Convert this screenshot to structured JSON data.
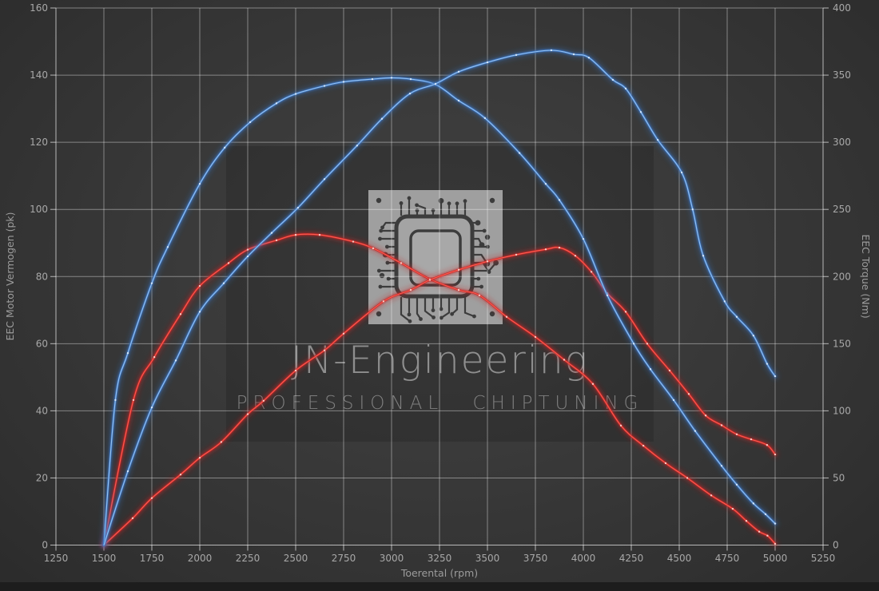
{
  "watermark": {
    "brand": "JN-Engineering",
    "tagline": "PROFESSIONAL CHIPTUNING",
    "logo": "chip-circuit-logo"
  },
  "colors": {
    "blue_series": "#3c78c8",
    "blue_core": "#9cc6f0",
    "blue_marker": "#dcebfb",
    "red_series": "#c62828",
    "red_core": "#ff5f52",
    "red_marker": "#ffd7cf",
    "grid": "rgba(255,255,255,0.40)",
    "axis": "rgba(255,255,255,0.65)",
    "background_center": "#424242",
    "background_edge": "#2b2b2b"
  },
  "chart_data": {
    "type": "line",
    "title": "",
    "xlabel": "Toerental (rpm)",
    "ylabel_left": "EEC Motor Vermogen (pk)",
    "ylabel_right": "EEC Torque (Nm)",
    "grid": true,
    "legend": "none",
    "x_range": [
      1250,
      5250
    ],
    "x_tick_step": 250,
    "y_left_range": [
      0,
      160
    ],
    "y_left_tick_step": 20,
    "y_right_range": [
      0,
      400
    ],
    "y_right_tick_step": 50,
    "x_tick_labels": [
      "1250",
      "1500",
      "1750",
      "2000",
      "2250",
      "2500",
      "2750",
      "3000",
      "3250",
      "3500",
      "3750",
      "4000",
      "4250",
      "4500",
      "4750",
      "5000",
      "5250"
    ],
    "y_left_tick_labels": [
      "0",
      "20",
      "40",
      "60",
      "80",
      "100",
      "120",
      "140",
      "160"
    ],
    "y_right_tick_labels": [
      "0",
      "50",
      "100",
      "150",
      "200",
      "250",
      "300",
      "350",
      "400"
    ],
    "series": [
      {
        "name": "red-torque",
        "color_key": "red",
        "axis": "right",
        "unit": "Nm",
        "peak": {
          "rpm": 2550,
          "value": 231
        },
        "points": [
          [
            1500,
            0
          ],
          [
            1654,
            108
          ],
          [
            1763,
            140
          ],
          [
            1900,
            172
          ],
          [
            2000,
            193
          ],
          [
            2150,
            210
          ],
          [
            2250,
            220
          ],
          [
            2400,
            227
          ],
          [
            2500,
            231
          ],
          [
            2625,
            231
          ],
          [
            2800,
            226
          ],
          [
            2904,
            221
          ],
          [
            3050,
            210
          ],
          [
            3200,
            198
          ],
          [
            3350,
            190
          ],
          [
            3458,
            186
          ],
          [
            3600,
            170
          ],
          [
            3750,
            155
          ],
          [
            3900,
            138
          ],
          [
            4050,
            120
          ],
          [
            4196,
            89
          ],
          [
            4313,
            74
          ],
          [
            4429,
            61
          ],
          [
            4542,
            50
          ],
          [
            4667,
            37
          ],
          [
            4779,
            27
          ],
          [
            4850,
            18
          ],
          [
            4917,
            10
          ],
          [
            4960,
            7
          ],
          [
            5000,
            1
          ]
        ]
      },
      {
        "name": "red-power",
        "color_key": "red",
        "axis": "left",
        "unit": "pk",
        "peak": {
          "rpm": 3875,
          "value": 88.6
        },
        "points": [
          [
            1500,
            0
          ],
          [
            1650,
            8
          ],
          [
            1750,
            14
          ],
          [
            1900,
            21
          ],
          [
            2000,
            26
          ],
          [
            2112,
            30.7
          ],
          [
            2250,
            39
          ],
          [
            2333,
            43
          ],
          [
            2500,
            52
          ],
          [
            2650,
            58
          ],
          [
            2750,
            63
          ],
          [
            2958,
            72.6
          ],
          [
            3100,
            76
          ],
          [
            3200,
            79
          ],
          [
            3350,
            82
          ],
          [
            3500,
            84.5
          ],
          [
            3650,
            86.5
          ],
          [
            3804,
            88.1
          ],
          [
            3875,
            88.6
          ],
          [
            3958,
            86.2
          ],
          [
            4042,
            81.4
          ],
          [
            4125,
            75
          ],
          [
            4221,
            69.5
          ],
          [
            4333,
            60
          ],
          [
            4450,
            52
          ],
          [
            4550,
            45
          ],
          [
            4638,
            38.6
          ],
          [
            4721,
            35.7
          ],
          [
            4800,
            33
          ],
          [
            4875,
            31.5
          ],
          [
            4958,
            29.8
          ],
          [
            5000,
            27
          ]
        ]
      },
      {
        "name": "blue-torque",
        "color_key": "blue",
        "axis": "right",
        "unit": "Nm",
        "peak": {
          "rpm": 3000,
          "value": 348
        },
        "points": [
          [
            1500,
            0
          ],
          [
            1560,
            108
          ],
          [
            1625,
            143
          ],
          [
            1750,
            195
          ],
          [
            1833,
            222
          ],
          [
            2000,
            269
          ],
          [
            2130,
            296
          ],
          [
            2263,
            315
          ],
          [
            2400,
            329
          ],
          [
            2500,
            336
          ],
          [
            2650,
            342
          ],
          [
            2750,
            345
          ],
          [
            2900,
            347
          ],
          [
            3000,
            348
          ],
          [
            3100,
            347
          ],
          [
            3229,
            343
          ],
          [
            3350,
            331
          ],
          [
            3487,
            318
          ],
          [
            3667,
            292
          ],
          [
            3804,
            269
          ],
          [
            3875,
            257
          ],
          [
            4000,
            228
          ],
          [
            4125,
            186
          ],
          [
            4263,
            150
          ],
          [
            4350,
            131
          ],
          [
            4471,
            108
          ],
          [
            4583,
            85
          ],
          [
            4721,
            59
          ],
          [
            4800,
            45
          ],
          [
            4887,
            31
          ],
          [
            4950,
            23
          ],
          [
            5000,
            16
          ]
        ]
      },
      {
        "name": "blue-power",
        "color_key": "blue",
        "axis": "left",
        "unit": "pk",
        "peak": {
          "rpm": 3833,
          "value": 147.4
        },
        "points": [
          [
            1500,
            0
          ],
          [
            1625,
            22
          ],
          [
            1750,
            41
          ],
          [
            1875,
            55
          ],
          [
            2000,
            69.5
          ],
          [
            2125,
            78
          ],
          [
            2250,
            86
          ],
          [
            2375,
            93
          ],
          [
            2512,
            100.5
          ],
          [
            2650,
            109
          ],
          [
            2820,
            119
          ],
          [
            2950,
            127
          ],
          [
            3096,
            134.5
          ],
          [
            3229,
            137.4
          ],
          [
            3350,
            141
          ],
          [
            3500,
            143.8
          ],
          [
            3650,
            146
          ],
          [
            3833,
            147.4
          ],
          [
            3950,
            146.2
          ],
          [
            4029,
            145.2
          ],
          [
            4154,
            138.6
          ],
          [
            4221,
            136
          ],
          [
            4300,
            129
          ],
          [
            4388,
            120.7
          ],
          [
            4513,
            111
          ],
          [
            4570,
            100
          ],
          [
            4625,
            86.2
          ],
          [
            4737,
            72.6
          ],
          [
            4800,
            68
          ],
          [
            4887,
            62.4
          ],
          [
            4958,
            54
          ],
          [
            5000,
            50.3
          ]
        ]
      }
    ]
  }
}
